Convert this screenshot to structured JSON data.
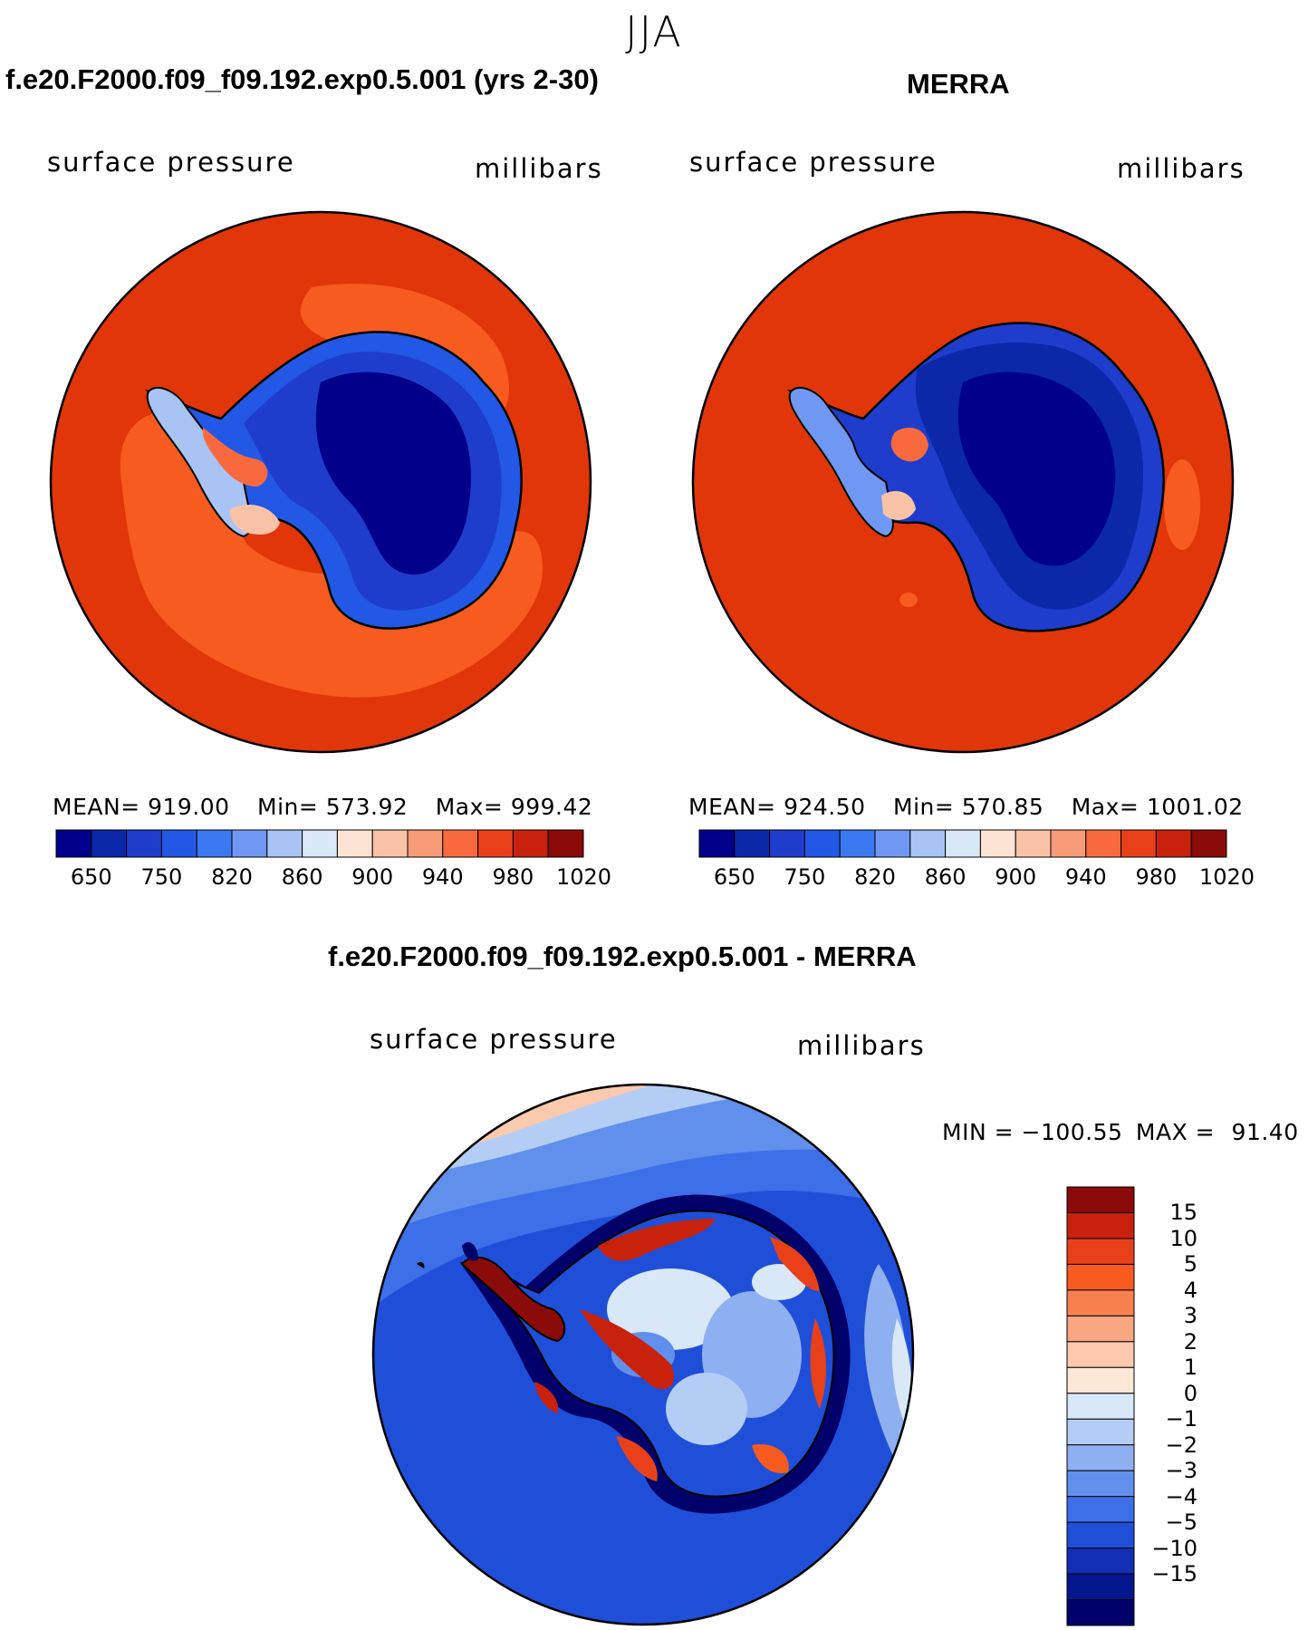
{
  "season": "JJA",
  "colors": {
    "ocean_red": "#e0360a",
    "ocean_orange": "#f75b1f",
    "coastline": "#000000"
  },
  "panels": [
    {
      "id": "model",
      "title": "f.e20.F2000.f09_f09.192.exp0.5.001 (yrs 2-30)",
      "variable": "surface pressure",
      "units": "millibars",
      "stats": {
        "mean": "919.00",
        "min": "573.92",
        "max": "999.42"
      }
    },
    {
      "id": "obs",
      "title": "MERRA",
      "variable": "surface pressure",
      "units": "millibars",
      "stats": {
        "mean": "924.50",
        "min": "570.85",
        "max": "1001.02"
      }
    }
  ],
  "abs_colorbar": {
    "colors": [
      "#00008b",
      "#0a28a8",
      "#1e3dcc",
      "#2357e6",
      "#3c78f0",
      "#6f98f2",
      "#a9c3f5",
      "#d8e8f7",
      "#fde3d3",
      "#f9c2a6",
      "#f89b78",
      "#f86a3e",
      "#e8411a",
      "#c8220c",
      "#8b0a0a"
    ],
    "tick_labels": [
      "650",
      "750",
      "820",
      "860",
      "900",
      "940",
      "980",
      "1020"
    ]
  },
  "diff_panel": {
    "title": "f.e20.F2000.f09_f09.192.exp0.5.001 - MERRA",
    "variable": "surface pressure",
    "units": "millibars",
    "min": "−100.55",
    "max": "91.40",
    "colorbar": {
      "colors_top_to_bottom": [
        "#8b0a0a",
        "#c8220c",
        "#e8411a",
        "#f75b1f",
        "#f8804f",
        "#f9a683",
        "#fbc9ae",
        "#fde8d8",
        "#d8e8f9",
        "#b4cdf5",
        "#8fb0f0",
        "#6190ec",
        "#3c6fe8",
        "#1f4fd9",
        "#1230b5",
        "#04178f",
        "#00006b"
      ],
      "tick_labels": [
        "15",
        "10",
        "5",
        "4",
        "3",
        "2",
        "1",
        "0",
        "−1",
        "−2",
        "−3",
        "−4",
        "−5",
        "−10",
        "−15"
      ]
    }
  }
}
